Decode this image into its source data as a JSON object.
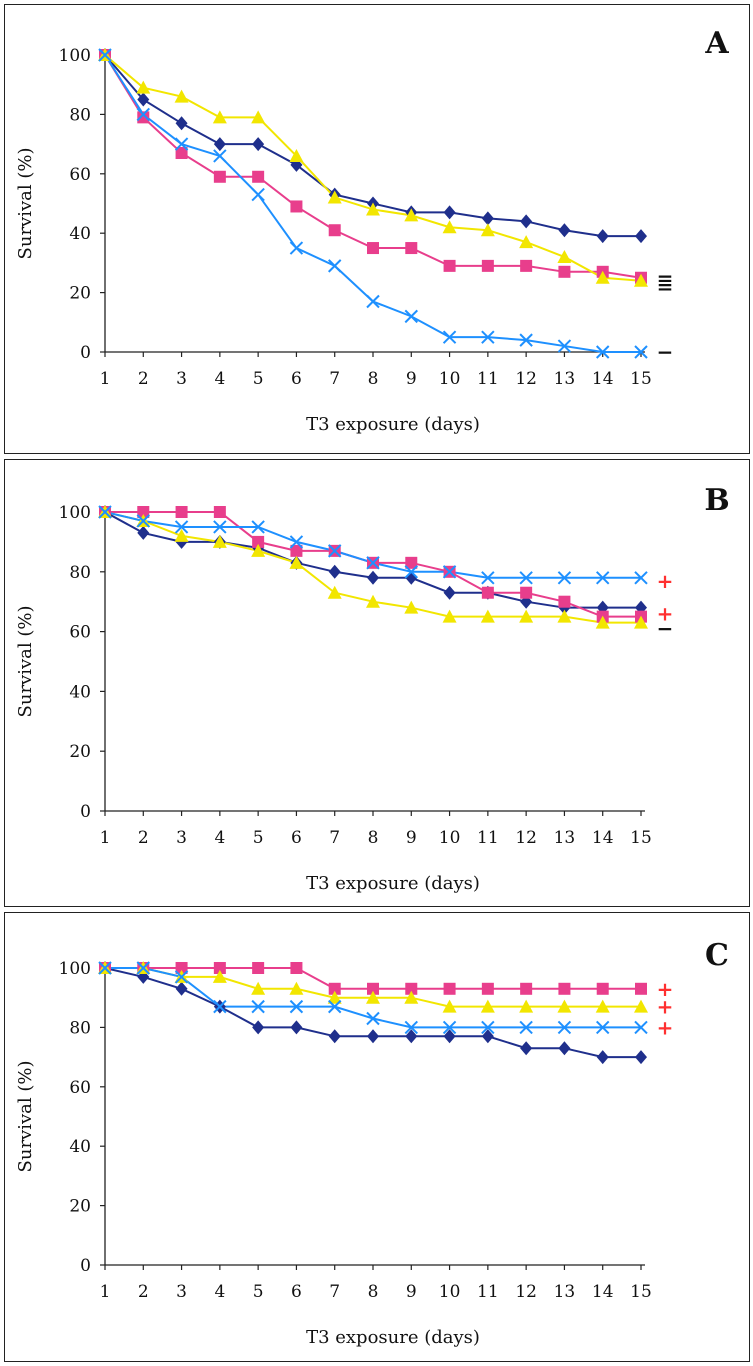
{
  "chart_data": [
    {
      "type": "line",
      "panel_label": "A",
      "xlabel": "T3 exposure (days)",
      "ylabel": "Survival (%)",
      "ylim": [
        0,
        100
      ],
      "yticks": [
        0,
        20,
        40,
        60,
        80,
        100
      ],
      "x": [
        1,
        2,
        3,
        4,
        5,
        6,
        7,
        8,
        9,
        10,
        11,
        12,
        13,
        14,
        15
      ],
      "grid": false,
      "series": [
        {
          "marker": "diamond",
          "color": "#1f2f8c",
          "values": [
            100,
            85,
            77,
            70,
            70,
            63,
            53,
            50,
            47,
            47,
            45,
            44,
            41,
            39,
            39
          ]
        },
        {
          "marker": "square",
          "color": "#e83e8c",
          "values": [
            100,
            79,
            67,
            59,
            59,
            49,
            41,
            35,
            35,
            29,
            29,
            29,
            27,
            27,
            25
          ]
        },
        {
          "marker": "triangle",
          "color": "#f2e600",
          "values": [
            100,
            89,
            86,
            79,
            79,
            66,
            52,
            48,
            46,
            42,
            41,
            37,
            32,
            25,
            24
          ]
        },
        {
          "marker": "x",
          "color": "#1e90ff",
          "values": [
            100,
            80,
            70,
            66,
            53,
            35,
            29,
            17,
            12,
            5,
            5,
            4,
            2,
            0,
            0
          ]
        }
      ],
      "annotations": [
        {
          "text": "=",
          "value": 25,
          "color": "#111111"
        },
        {
          "text": "=",
          "value": 22,
          "color": "#111111"
        },
        {
          "text": "−",
          "value": 0,
          "color": "#111111"
        }
      ]
    },
    {
      "type": "line",
      "panel_label": "B",
      "xlabel": "T3 exposure (days)",
      "ylabel": "Survival (%)",
      "ylim": [
        0,
        100
      ],
      "yticks": [
        0,
        20,
        40,
        60,
        80,
        100
      ],
      "x": [
        1,
        2,
        3,
        4,
        5,
        6,
        7,
        8,
        9,
        10,
        11,
        12,
        13,
        14,
        15
      ],
      "grid": false,
      "series": [
        {
          "marker": "diamond",
          "color": "#1f2f8c",
          "values": [
            100,
            93,
            90,
            90,
            88,
            83,
            80,
            78,
            78,
            73,
            73,
            70,
            68,
            68,
            68
          ]
        },
        {
          "marker": "square",
          "color": "#e83e8c",
          "values": [
            100,
            100,
            100,
            100,
            90,
            87,
            87,
            83,
            83,
            80,
            73,
            73,
            70,
            65,
            65
          ]
        },
        {
          "marker": "triangle",
          "color": "#f2e600",
          "values": [
            100,
            97,
            92,
            90,
            87,
            83,
            73,
            70,
            68,
            65,
            65,
            65,
            65,
            63,
            63
          ]
        },
        {
          "marker": "x",
          "color": "#1e90ff",
          "values": [
            100,
            97,
            95,
            95,
            95,
            90,
            87,
            83,
            80,
            80,
            78,
            78,
            78,
            78,
            78
          ]
        }
      ],
      "annotations": [
        {
          "text": "+",
          "value": 77,
          "color": "#ff3030"
        },
        {
          "text": "+",
          "value": 66,
          "color": "#ff3030"
        },
        {
          "text": "−",
          "value": 61,
          "color": "#111111"
        }
      ]
    },
    {
      "type": "line",
      "panel_label": "C",
      "xlabel": "T3 exposure (days)",
      "ylabel": "Survival (%)",
      "ylim": [
        0,
        100
      ],
      "yticks": [
        0,
        20,
        40,
        60,
        80,
        100
      ],
      "x": [
        1,
        2,
        3,
        4,
        5,
        6,
        7,
        8,
        9,
        10,
        11,
        12,
        13,
        14,
        15
      ],
      "grid": false,
      "series": [
        {
          "marker": "diamond",
          "color": "#1f2f8c",
          "values": [
            100,
            97,
            93,
            87,
            80,
            80,
            77,
            77,
            77,
            77,
            77,
            73,
            73,
            70,
            70
          ]
        },
        {
          "marker": "square",
          "color": "#e83e8c",
          "values": [
            100,
            100,
            100,
            100,
            100,
            100,
            93,
            93,
            93,
            93,
            93,
            93,
            93,
            93,
            93
          ]
        },
        {
          "marker": "triangle",
          "color": "#f2e600",
          "values": [
            100,
            100,
            97,
            97,
            93,
            93,
            90,
            90,
            90,
            87,
            87,
            87,
            87,
            87,
            87
          ]
        },
        {
          "marker": "x",
          "color": "#1e90ff",
          "values": [
            100,
            100,
            97,
            87,
            87,
            87,
            87,
            83,
            80,
            80,
            80,
            80,
            80,
            80,
            80
          ]
        }
      ],
      "annotations": [
        {
          "text": "+",
          "value": 93,
          "color": "#ff3030"
        },
        {
          "text": "+",
          "value": 87,
          "color": "#ff3030"
        },
        {
          "text": "+",
          "value": 80,
          "color": "#ff3030"
        }
      ]
    }
  ]
}
